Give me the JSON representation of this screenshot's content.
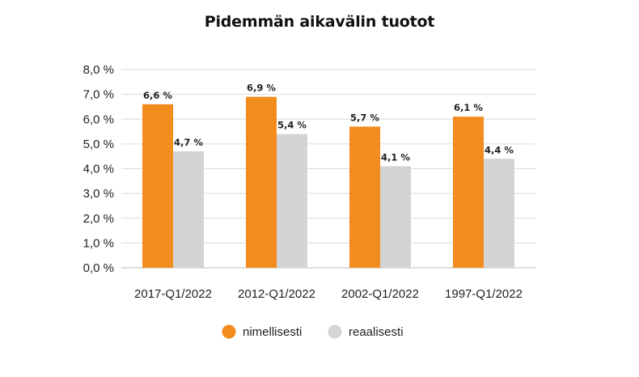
{
  "chart_data": {
    "type": "bar",
    "title": "Pidemmän aikavälin tuotot",
    "categories": [
      "2017-Q1/2022",
      "2012-Q1/2022",
      "2002-Q1/2022",
      "1997-Q1/2022"
    ],
    "series": [
      {
        "name": "nimellisesti",
        "values": [
          6.6,
          6.9,
          5.7,
          6.1
        ],
        "labels": [
          "6,6 %",
          "6,9 %",
          "5,7 %",
          "6,1 %"
        ],
        "color": "#F28C1E"
      },
      {
        "name": "reaalisesti",
        "values": [
          4.7,
          5.4,
          4.1,
          4.4
        ],
        "labels": [
          "4,7 %",
          "5,4 %",
          "4,1 %",
          "4,4 %"
        ],
        "color": "#D3D4D6"
      }
    ],
    "ylim": [
      0,
      8
    ],
    "yticks": [
      0,
      1,
      2,
      3,
      4,
      5,
      6,
      7,
      8
    ],
    "ytick_labels": [
      "0,0 %",
      "1,0 %",
      "2,0 %",
      "3,0 %",
      "4,0 %",
      "5,0 %",
      "6,0 %",
      "7,0 %",
      "8,0 %"
    ],
    "grid": true,
    "legend_position": "bottom-center",
    "xlabel": "",
    "ylabel": ""
  },
  "colors": {
    "gridline": "#DCDCDC",
    "axis": "#BBBBBB"
  }
}
